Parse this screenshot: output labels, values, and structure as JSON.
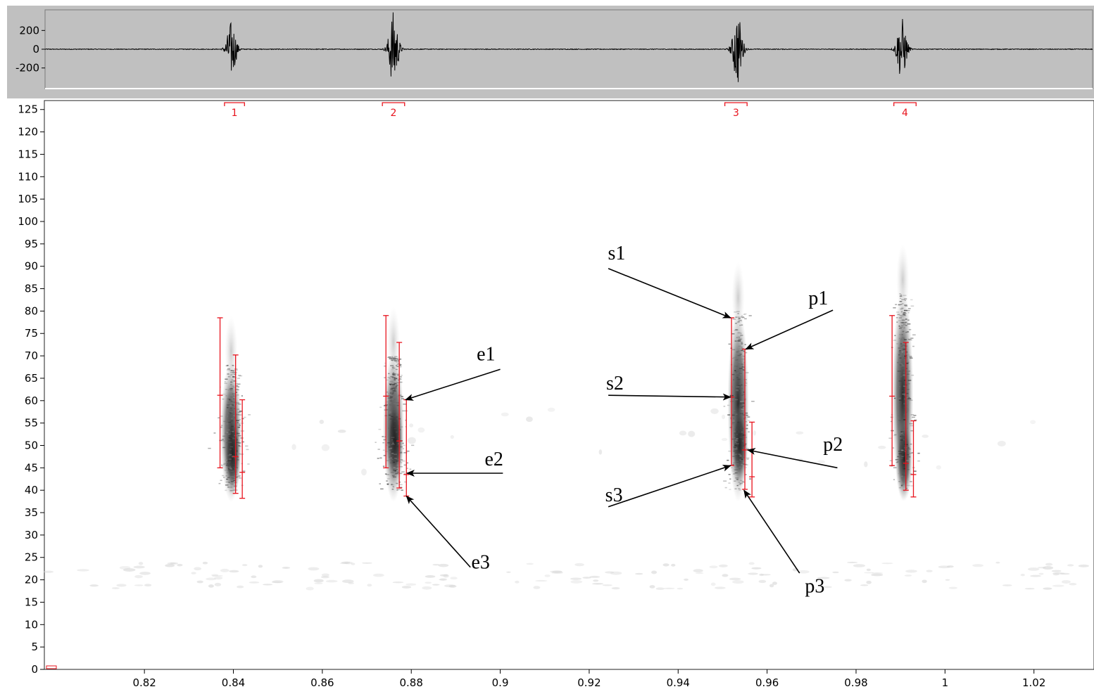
{
  "colors": {
    "background": "#ffffff",
    "waveform_panel": "#c0c0c0",
    "waveform_trace": "#000000",
    "spectrogram_ink": "#262626",
    "range_bar": "#e8141e",
    "annotation": "#000000"
  },
  "chart_data": [
    {
      "type": "line",
      "name": "waveform",
      "xlim": [
        0.7975,
        1.0335
      ],
      "ylim": [
        -420,
        420
      ],
      "yticks": [
        200,
        0,
        -200
      ],
      "ytick_labels": [
        "200",
        "0",
        "-200"
      ],
      "pulses": [
        {
          "t": 0.8395,
          "amplitude": 300
        },
        {
          "t": 0.876,
          "amplitude": 410
        },
        {
          "t": 0.9535,
          "amplitude": 390
        },
        {
          "t": 0.9905,
          "amplitude": 340
        }
      ],
      "grid": false
    },
    {
      "type": "scatter",
      "name": "spectrogram",
      "xlim": [
        0.7975,
        1.0335
      ],
      "ylim": [
        0,
        127
      ],
      "xticks": [
        0.82,
        0.84,
        0.86,
        0.88,
        0.9,
        0.92,
        0.94,
        0.96,
        0.98,
        1,
        1.02
      ],
      "xtick_labels": [
        "0.82",
        "0.84",
        "0.86",
        "0.88",
        "0.9",
        "0.92",
        "0.94",
        "0.96",
        "0.98",
        "1",
        "1.02"
      ],
      "yticks": [
        0,
        5,
        10,
        15,
        20,
        25,
        30,
        35,
        40,
        45,
        50,
        55,
        60,
        65,
        70,
        75,
        80,
        85,
        90,
        95,
        100,
        105,
        110,
        115,
        120,
        125
      ],
      "ytick_labels": [
        "0",
        "5",
        "10",
        "15",
        "20",
        "25",
        "30",
        "35",
        "40",
        "45",
        "50",
        "55",
        "60",
        "65",
        "70",
        "75",
        "80",
        "85",
        "90",
        "95",
        "100",
        "105",
        "110",
        "115",
        "120",
        "125"
      ],
      "grid": false,
      "selections": [
        {
          "label": "1",
          "t_start": 0.838,
          "t_end": 0.8425
        },
        {
          "label": "2",
          "t_start": 0.8735,
          "t_end": 0.8785
        },
        {
          "label": "3",
          "t_start": 0.9505,
          "t_end": 0.9555
        },
        {
          "label": "4",
          "t_start": 0.9885,
          "t_end": 0.9935
        }
      ],
      "syllables": [
        {
          "t": 0.8395,
          "low": 38,
          "high": 78,
          "peak": 48
        },
        {
          "t": 0.876,
          "low": 38,
          "high": 80,
          "peak": 51
        },
        {
          "t": 0.9535,
          "low": 38,
          "high": 90,
          "peak": 50
        },
        {
          "t": 0.9905,
          "low": 38,
          "high": 94,
          "peak": 47
        }
      ],
      "range_bars": [
        {
          "x": 0.837,
          "low": 45,
          "high": 78.5,
          "mid": 61.2
        },
        {
          "x": 0.8405,
          "low": 39.3,
          "high": 70.2,
          "mid": 47.5
        },
        {
          "x": 0.842,
          "low": 38.2,
          "high": 60.2,
          "mid": 44
        },
        {
          "x": 0.8743,
          "low": 45,
          "high": 79,
          "mid": 61
        },
        {
          "x": 0.8773,
          "low": 40.5,
          "high": 73,
          "mid": 51
        },
        {
          "x": 0.8789,
          "low": 38.7,
          "high": 60.2,
          "mid": 43.5
        },
        {
          "x": 0.952,
          "low": 45.5,
          "high": 78.5,
          "mid": 60.8
        },
        {
          "x": 0.955,
          "low": 40.2,
          "high": 71.5,
          "mid": 49
        },
        {
          "x": 0.9566,
          "low": 38.5,
          "high": 55.2,
          "mid": 43
        },
        {
          "x": 0.9881,
          "low": 45.5,
          "high": 79,
          "mid": 61
        },
        {
          "x": 0.9912,
          "low": 40,
          "high": 73,
          "mid": 46
        },
        {
          "x": 0.9929,
          "low": 38.5,
          "high": 55.5,
          "mid": 43.5
        }
      ],
      "annotations": [
        {
          "label": "e1",
          "text_x": 0.8947,
          "text_y": 69,
          "from": [
            0.9,
            67
          ],
          "to": [
            0.8787,
            60.2
          ]
        },
        {
          "label": "e2",
          "text_x": 0.8965,
          "text_y": 45.5,
          "from": [
            0.9006,
            43.8
          ],
          "to": [
            0.879,
            43.8
          ]
        },
        {
          "label": "e3",
          "text_x": 0.8935,
          "text_y": 22.5,
          "from": [
            0.8933,
            22.8
          ],
          "to": [
            0.8789,
            38.7
          ]
        },
        {
          "label": "s1",
          "text_x": 0.9242,
          "text_y": 91.5,
          "from": [
            0.9243,
            89.5
          ],
          "to": [
            0.9518,
            78.5
          ]
        },
        {
          "label": "s2",
          "text_x": 0.9238,
          "text_y": 62.5,
          "from": [
            0.9243,
            61.2
          ],
          "to": [
            0.9518,
            60.8
          ]
        },
        {
          "label": "s3",
          "text_x": 0.9236,
          "text_y": 37.5,
          "from": [
            0.9243,
            36.3
          ],
          "to": [
            0.9518,
            45.5
          ]
        },
        {
          "label": "p1",
          "text_x": 0.9693,
          "text_y": 81.5,
          "from": [
            0.9748,
            80.2
          ],
          "to": [
            0.9552,
            71.5
          ]
        },
        {
          "label": "p2",
          "text_x": 0.9726,
          "text_y": 48.8,
          "from": [
            0.9758,
            45
          ],
          "to": [
            0.9556,
            49
          ]
        },
        {
          "label": "p3",
          "text_x": 0.9685,
          "text_y": 17.2,
          "from": [
            0.9673,
            21.5
          ],
          "to": [
            0.9548,
            40
          ]
        }
      ]
    }
  ]
}
